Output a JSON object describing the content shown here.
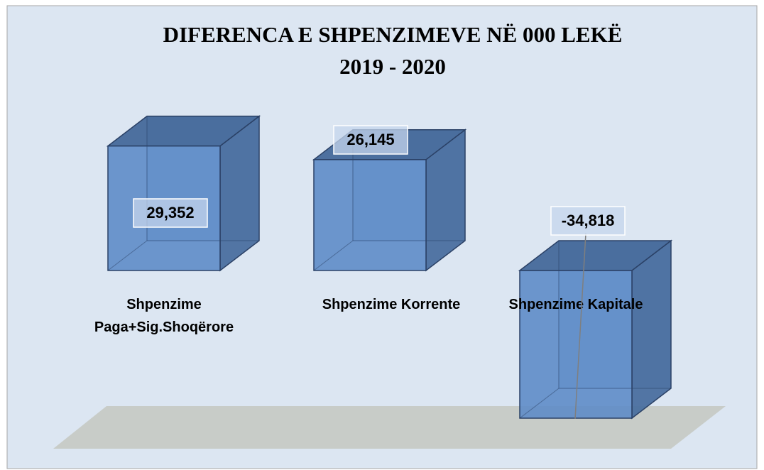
{
  "chart_data": {
    "type": "bar3d",
    "title": "DIFERENCA E SHPENZIMEVE NË 000 LEKË\n2019 - 2020",
    "categories": [
      "Shpenzime Paga+Sig.Shoqërore",
      "Shpenzime Korrente",
      "Shpenzime Kapitale"
    ],
    "values": [
      29352,
      26145,
      -34818
    ],
    "value_labels": [
      "29,352",
      "26,145",
      "-34,818"
    ],
    "color": "#5b8ac6"
  }
}
